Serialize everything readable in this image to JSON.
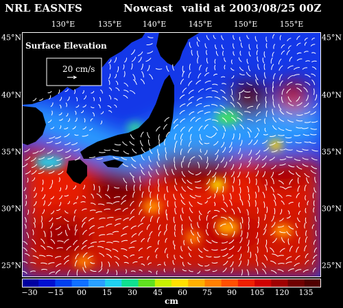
{
  "header": {
    "source": "NRL EASNFS",
    "product": "Nowcast",
    "valid": "valid at 2003/08/25 00Z"
  },
  "map": {
    "longitude_labels": [
      "130°E",
      "135°E",
      "140°E",
      "145°E",
      "150°E",
      "155°E"
    ],
    "latitude_labels": [
      "45°N",
      "40°N",
      "35°N",
      "30°N",
      "25°N"
    ],
    "legend_title": "Surface Elevation",
    "vector_scale_label": "20 cm/s",
    "land_color": "#000000"
  },
  "colorbar": {
    "tick_labels": [
      "−30",
      "−15",
      "00",
      "15",
      "30",
      "45",
      "60",
      "75",
      "90",
      "105",
      "120",
      "135"
    ],
    "unit": "cm",
    "colors": [
      "#0000a0",
      "#0010d0",
      "#0040f0",
      "#1070ff",
      "#2aa0ff",
      "#20d0f0",
      "#10e090",
      "#60e020",
      "#c8f000",
      "#ffe000",
      "#ffb000",
      "#ff8000",
      "#ff5000",
      "#f02000",
      "#d00000",
      "#a00000",
      "#700000",
      "#500000"
    ]
  }
}
